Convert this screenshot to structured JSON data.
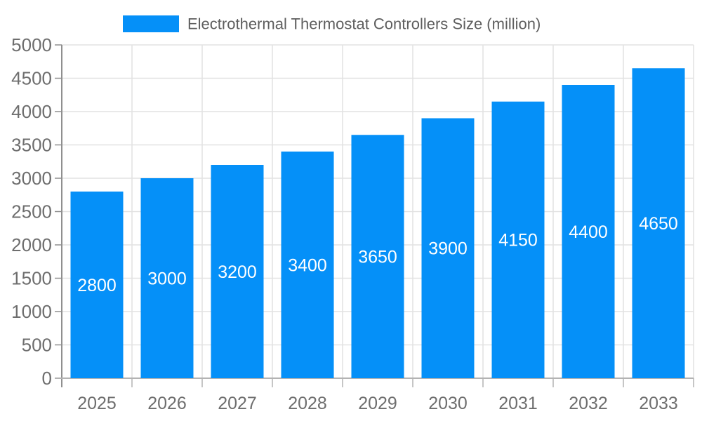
{
  "chart_data": {
    "type": "bar",
    "title": "Electrothermal Thermostat Controllers Size (million)",
    "legend": {
      "label": "Electrothermal Thermostat Controllers Size (million)",
      "position": "top"
    },
    "categories": [
      "2025",
      "2026",
      "2027",
      "2028",
      "2029",
      "2030",
      "2031",
      "2032",
      "2033"
    ],
    "values": [
      2800,
      3000,
      3200,
      3400,
      3650,
      3900,
      4150,
      4400,
      4650
    ],
    "value_labels": [
      "2800",
      "3000",
      "3200",
      "3400",
      "3650",
      "3900",
      "4150",
      "4400",
      "4650"
    ],
    "xlabel": "",
    "ylabel": "",
    "ylim": [
      0,
      5000
    ],
    "y_ticks": [
      0,
      500,
      1000,
      1500,
      2000,
      2500,
      3000,
      3500,
      4000,
      4500,
      5000
    ],
    "grid": true,
    "value_label_position": "center-inside",
    "colors": {
      "bar": "#0590F8",
      "value_text": "#FFFFFF",
      "axis_text": "#6E6E6E",
      "legend_text": "#5E5E5E",
      "gridline": "#E2E2E2",
      "y_axis_line": "#8F8F8F",
      "x_axis_line": "#B3B3B3"
    }
  }
}
